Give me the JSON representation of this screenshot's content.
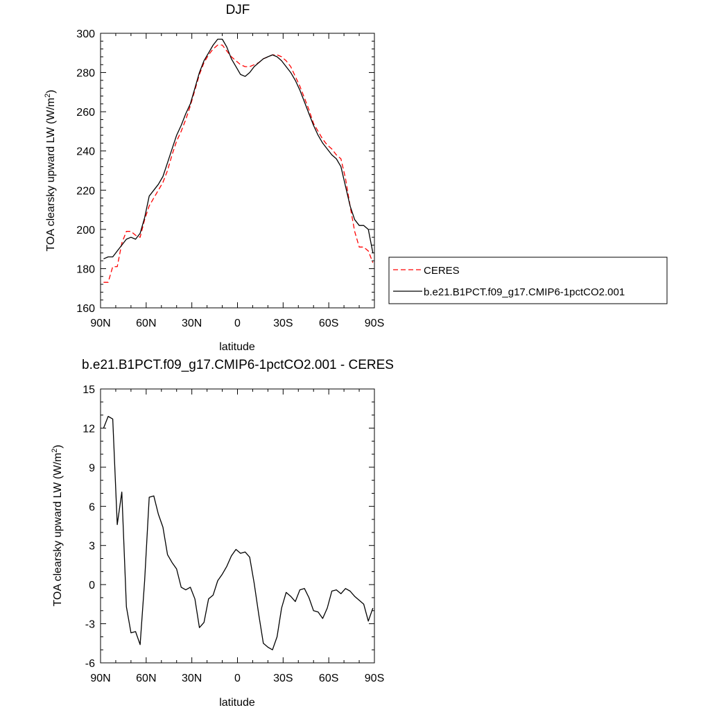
{
  "chart_data": [
    {
      "type": "line",
      "title": "DJF",
      "xlabel": "latitude",
      "ylabel": "TOA clearsky upward LW (W/m²)",
      "xlim": [
        90,
        -90
      ],
      "ylim": [
        160,
        300
      ],
      "xticks": [
        90,
        60,
        30,
        0,
        -30,
        -60,
        -90
      ],
      "xtick_labels": [
        "90N",
        "60N",
        "30N",
        "0",
        "30S",
        "60S",
        "90S"
      ],
      "yticks": [
        160,
        180,
        200,
        220,
        240,
        260,
        280,
        300
      ],
      "ytick_labels": [
        "160",
        "180",
        "200",
        "220",
        "240",
        "260",
        "280",
        "300"
      ],
      "grid": false,
      "legend_position": "right-outside",
      "series": [
        {
          "name": "CERES",
          "color": "#ff0000",
          "dash": "dashed",
          "x": [
            88,
            85,
            82,
            79,
            76,
            73,
            70,
            67,
            64,
            61,
            58,
            55,
            52,
            49,
            46,
            43,
            40,
            37,
            34,
            31,
            28,
            25,
            22,
            19,
            16,
            13,
            10,
            7,
            4,
            1,
            -2,
            -5,
            -8,
            -11,
            -14,
            -17,
            -20,
            -23,
            -26,
            -29,
            -32,
            -35,
            -38,
            -41,
            -44,
            -47,
            -50,
            -53,
            -56,
            -59,
            -62,
            -65,
            -68,
            -71,
            -74,
            -77,
            -80,
            -83,
            -86,
            -89
          ],
          "y": [
            173,
            173,
            181,
            181,
            193,
            199,
            199,
            197,
            196,
            205,
            212,
            216,
            220,
            224,
            230,
            238,
            245,
            250,
            256,
            263,
            271,
            279,
            285,
            289,
            292,
            294,
            294,
            291,
            288,
            286,
            284,
            283,
            283,
            284,
            285,
            287,
            288,
            289,
            289,
            288,
            286,
            283,
            278,
            273,
            267,
            261,
            254,
            250,
            246,
            243,
            241,
            238,
            236,
            226,
            212,
            199,
            191,
            191,
            189,
            183
          ]
        },
        {
          "name": "b.e21.B1PCT.f09_g17.CMIP6-1pctCO2.001",
          "color": "#000000",
          "dash": "solid",
          "x": [
            88,
            85,
            82,
            79,
            76,
            73,
            70,
            67,
            64,
            61,
            58,
            55,
            52,
            49,
            46,
            43,
            40,
            37,
            34,
            31,
            28,
            25,
            22,
            19,
            16,
            13,
            10,
            7,
            4,
            1,
            -2,
            -5,
            -8,
            -11,
            -14,
            -17,
            -20,
            -23,
            -26,
            -29,
            -32,
            -35,
            -38,
            -41,
            -44,
            -47,
            -50,
            -53,
            -56,
            -59,
            -62,
            -65,
            -68,
            -71,
            -74,
            -77,
            -80,
            -83,
            -86,
            -89
          ],
          "y": [
            185,
            186,
            186,
            189,
            192,
            195,
            196,
            195,
            198,
            206,
            217,
            220,
            223,
            227,
            234,
            241,
            248,
            253,
            259,
            264,
            272,
            280,
            286,
            290,
            294,
            297,
            297,
            293,
            287,
            283,
            279,
            278,
            280,
            283,
            285,
            287,
            288,
            289,
            288,
            286,
            283,
            280,
            276,
            271,
            265,
            259,
            253,
            248,
            244,
            241,
            238,
            236,
            232,
            222,
            212,
            205,
            202,
            202,
            200,
            188
          ]
        }
      ]
    },
    {
      "type": "line",
      "title": "b.e21.B1PCT.f09_g17.CMIP6-1pctCO2.001 - CERES",
      "xlabel": "latitude",
      "ylabel": "TOA clearsky upward LW (W/m²)",
      "xlim": [
        90,
        -90
      ],
      "ylim": [
        -6,
        15
      ],
      "xticks": [
        90,
        60,
        30,
        0,
        -30,
        -60,
        -90
      ],
      "xtick_labels": [
        "90N",
        "60N",
        "30N",
        "0",
        "30S",
        "60S",
        "90S"
      ],
      "yticks": [
        -6,
        -3,
        0,
        3,
        6,
        9,
        12,
        15
      ],
      "ytick_labels": [
        "-6",
        "-3",
        "0",
        "3",
        "6",
        "9",
        "12",
        "15"
      ],
      "grid": false,
      "series": [
        {
          "color": "#000000",
          "dash": "solid",
          "x": [
            88,
            85,
            82,
            79,
            76,
            73,
            70,
            67,
            64,
            61,
            58,
            55,
            52,
            49,
            46,
            43,
            40,
            37,
            34,
            31,
            28,
            25,
            22,
            19,
            16,
            13,
            10,
            7,
            4,
            1,
            -2,
            -5,
            -8,
            -11,
            -14,
            -17,
            -20,
            -23,
            -26,
            -29,
            -32,
            -35,
            -38,
            -41,
            -44,
            -47,
            -50,
            -53,
            -56,
            -59,
            -62,
            -65,
            -68,
            -71,
            -74,
            -77,
            -80,
            -83,
            -86,
            -89
          ],
          "y": [
            12.0,
            12.9,
            12.7,
            4.6,
            7.1,
            -1.7,
            -3.7,
            -3.6,
            -4.6,
            0.3,
            6.7,
            6.8,
            5.4,
            4.4,
            2.3,
            1.7,
            1.2,
            -0.2,
            -0.4,
            -0.2,
            -1.1,
            -3.3,
            -2.9,
            -1.1,
            -0.8,
            0.3,
            0.8,
            1.4,
            2.2,
            2.7,
            2.4,
            2.5,
            2.1,
            0.1,
            -2.3,
            -4.5,
            -4.8,
            -5.0,
            -4.0,
            -1.8,
            -0.6,
            -0.9,
            -1.3,
            -0.4,
            -0.3,
            -1.0,
            -2.0,
            -2.1,
            -2.6,
            -1.8,
            -0.5,
            -0.4,
            -0.7,
            -0.3,
            -0.5,
            -0.9,
            -1.2,
            -1.5,
            -2.8,
            -1.8
          ]
        }
      ]
    }
  ]
}
